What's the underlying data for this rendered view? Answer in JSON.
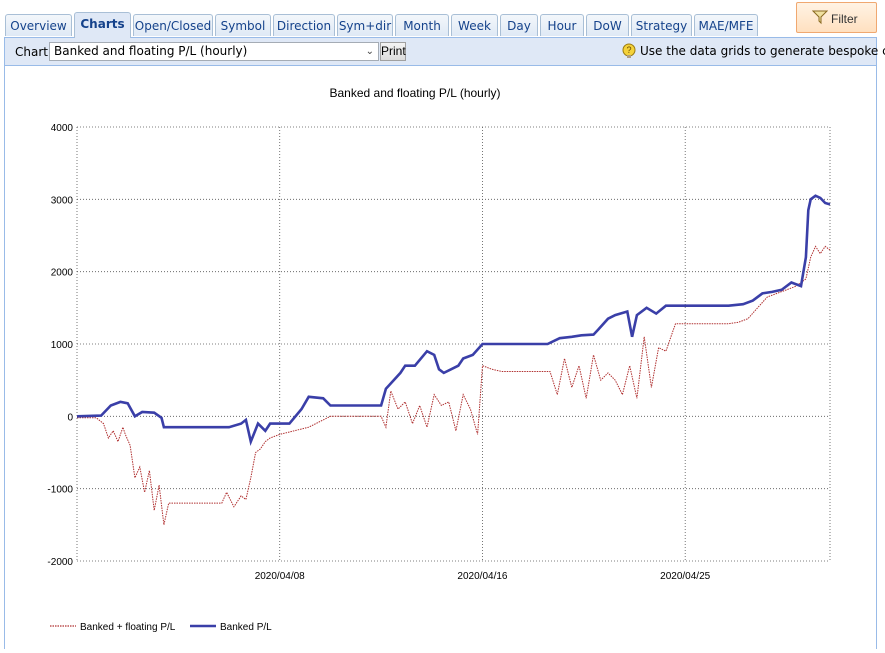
{
  "tabs": [
    {
      "label": "Overview",
      "active": false
    },
    {
      "label": "Charts",
      "active": true
    },
    {
      "label": "Open/Closed",
      "active": false
    },
    {
      "label": "Symbol",
      "active": false
    },
    {
      "label": "Direction",
      "active": false
    },
    {
      "label": "Sym+dir",
      "active": false
    },
    {
      "label": "Month",
      "active": false
    },
    {
      "label": "Week",
      "active": false
    },
    {
      "label": "Day",
      "active": false
    },
    {
      "label": "Hour",
      "active": false
    },
    {
      "label": "DoW",
      "active": false
    },
    {
      "label": "Strategy",
      "active": false
    },
    {
      "label": "MAE/MFE",
      "active": false
    }
  ],
  "filter_label": "Filter",
  "toolbar": {
    "chart_label": "Chart:",
    "selected_chart": "Banked and floating P/L (hourly)",
    "print_label": "Print",
    "hint": "Use the data grids to generate bespoke charts"
  },
  "colors": {
    "banked": "#3a3fa8",
    "floating": "#b03030",
    "grid": "#555555"
  },
  "chart_data": {
    "type": "line",
    "title": "Banked and floating P/L (hourly)",
    "xlabel": "",
    "ylabel": "",
    "ylim": [
      -2000,
      4000
    ],
    "yticks": [
      -2000,
      -1000,
      0,
      1000,
      2000,
      3000,
      4000
    ],
    "xlim": [
      0,
      31.2
    ],
    "xticks": [
      {
        "x": 8.4,
        "label": "2020/04/08"
      },
      {
        "x": 16.8,
        "label": "2020/04/16"
      },
      {
        "x": 25.2,
        "label": "2020/04/25"
      }
    ],
    "grid": true,
    "legend": "bottom-left",
    "series": [
      {
        "name": "Banked + floating P/L",
        "style": "dotted",
        "color": "#b03030",
        "x": [
          0,
          0.8,
          1.1,
          1.3,
          1.5,
          1.7,
          1.9,
          2.0,
          2.2,
          2.4,
          2.6,
          2.8,
          3.0,
          3.2,
          3.4,
          3.6,
          3.8,
          4.0,
          4.3,
          6.0,
          6.2,
          6.5,
          6.8,
          7.0,
          7.2,
          7.4,
          7.6,
          7.8,
          8.0,
          8.4,
          9.0,
          9.6,
          10.2,
          10.5,
          10.8,
          12.6,
          12.8,
          13.0,
          13.3,
          13.6,
          13.9,
          14.2,
          14.5,
          14.8,
          15.1,
          15.4,
          15.7,
          16.0,
          16.3,
          16.6,
          16.8,
          17.2,
          17.6,
          19.6,
          19.9,
          20.2,
          20.5,
          20.8,
          21.1,
          21.4,
          21.7,
          22.0,
          22.3,
          22.6,
          22.9,
          23.2,
          23.5,
          23.8,
          24.1,
          24.4,
          24.8,
          27.0,
          27.4,
          27.8,
          28.2,
          28.6,
          29.0,
          29.4,
          29.8,
          30.2,
          30.4,
          30.6,
          30.8,
          31.0,
          31.2
        ],
        "y": [
          -20,
          -20,
          -100,
          -300,
          -200,
          -350,
          -150,
          -250,
          -400,
          -850,
          -700,
          -1050,
          -750,
          -1300,
          -950,
          -1500,
          -1200,
          -1200,
          -1200,
          -1200,
          -1050,
          -1250,
          -1100,
          -1150,
          -850,
          -500,
          -450,
          -350,
          -300,
          -250,
          -200,
          -150,
          -50,
          0,
          0,
          0,
          -150,
          350,
          100,
          200,
          -100,
          150,
          -150,
          300,
          150,
          200,
          -200,
          300,
          100,
          -250,
          700,
          650,
          620,
          620,
          300,
          800,
          400,
          700,
          250,
          850,
          500,
          600,
          500,
          300,
          700,
          250,
          1100,
          400,
          950,
          900,
          1280,
          1280,
          1300,
          1350,
          1500,
          1650,
          1700,
          1750,
          1800,
          1900,
          2200,
          2350,
          2250,
          2350,
          2300
        ]
      },
      {
        "name": "Banked P/L",
        "style": "solid",
        "color": "#3a3fa8",
        "x": [
          0,
          1.0,
          1.4,
          1.8,
          2.1,
          2.4,
          2.7,
          3.2,
          3.5,
          3.6,
          4.0,
          5.0,
          6.0,
          6.3,
          6.8,
          7.0,
          7.2,
          7.5,
          7.8,
          8.0,
          8.8,
          9.3,
          9.6,
          10.2,
          10.5,
          10.8,
          12.6,
          12.8,
          13.4,
          13.6,
          14.0,
          14.5,
          14.8,
          15.0,
          15.2,
          15.8,
          16.0,
          16.4,
          16.8,
          17.0,
          17.2,
          17.6,
          19.5,
          20.0,
          20.5,
          20.9,
          21.4,
          21.6,
          22.0,
          22.3,
          22.8,
          23.0,
          23.2,
          23.6,
          24.0,
          24.4,
          24.8,
          26.0,
          27.0,
          27.6,
          28.0,
          28.4,
          28.8,
          29.2,
          29.6,
          30.0,
          30.2,
          30.3,
          30.4,
          30.6,
          30.8,
          31.0,
          31.2
        ],
        "y": [
          0,
          10,
          150,
          200,
          180,
          0,
          60,
          50,
          -20,
          -150,
          -150,
          -150,
          -150,
          -150,
          -100,
          -50,
          -350,
          -100,
          -200,
          -100,
          -100,
          100,
          270,
          250,
          150,
          150,
          150,
          380,
          600,
          700,
          700,
          900,
          850,
          650,
          600,
          700,
          800,
          850,
          1000,
          1000,
          1000,
          1000,
          1000,
          1080,
          1100,
          1120,
          1130,
          1200,
          1350,
          1400,
          1450,
          1100,
          1400,
          1500,
          1420,
          1530,
          1530,
          1530,
          1530,
          1550,
          1600,
          1700,
          1720,
          1750,
          1850,
          1800,
          2200,
          2850,
          3000,
          3050,
          3020,
          2950,
          2930
        ]
      }
    ]
  }
}
